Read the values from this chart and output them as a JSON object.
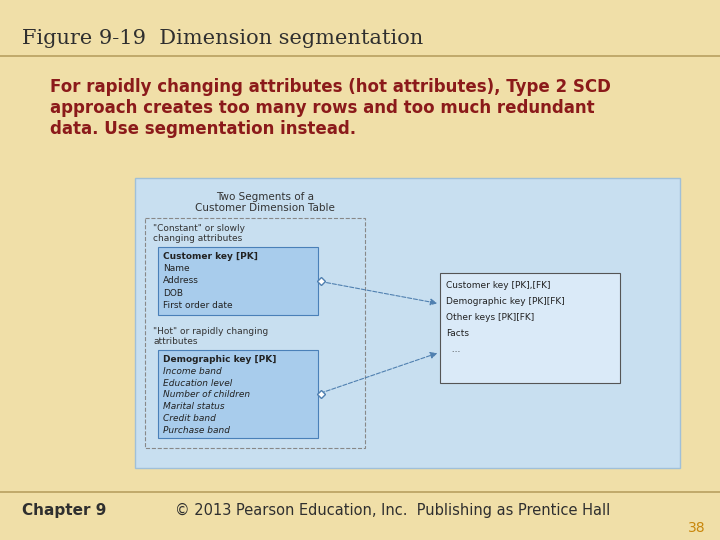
{
  "title": "Figure 9-19  Dimension segmentation",
  "subtitle_lines": [
    "For rapidly changing attributes (hot attributes), Type 2 SCD",
    "approach creates too many rows and too much redundant",
    "data. Use segmentation instead."
  ],
  "footer_left": "Chapter 9",
  "footer_center": "© 2013 Pearson Education, Inc.  Publishing as Prentice Hall",
  "footer_page": "38",
  "bg_color": "#f0dfa8",
  "title_color": "#2f2f2f",
  "subtitle_color": "#8b1a1a",
  "footer_color": "#2f2f2f",
  "page_color": "#c8860a",
  "diagram_bg": "#c8dff0",
  "diagram_border": "#a0c0d8",
  "box_fill": "#a8ccec",
  "box_border": "#4a80b8",
  "dashed_border_color": "#888888",
  "box_right_bg": "#daeaf8",
  "box_right_border": "#555555",
  "title_line_color": "#b8a060",
  "header_line_color": "#b8a060",
  "diag_inner_dashed_color": "#888888",
  "arrow_color": "#5080b0"
}
